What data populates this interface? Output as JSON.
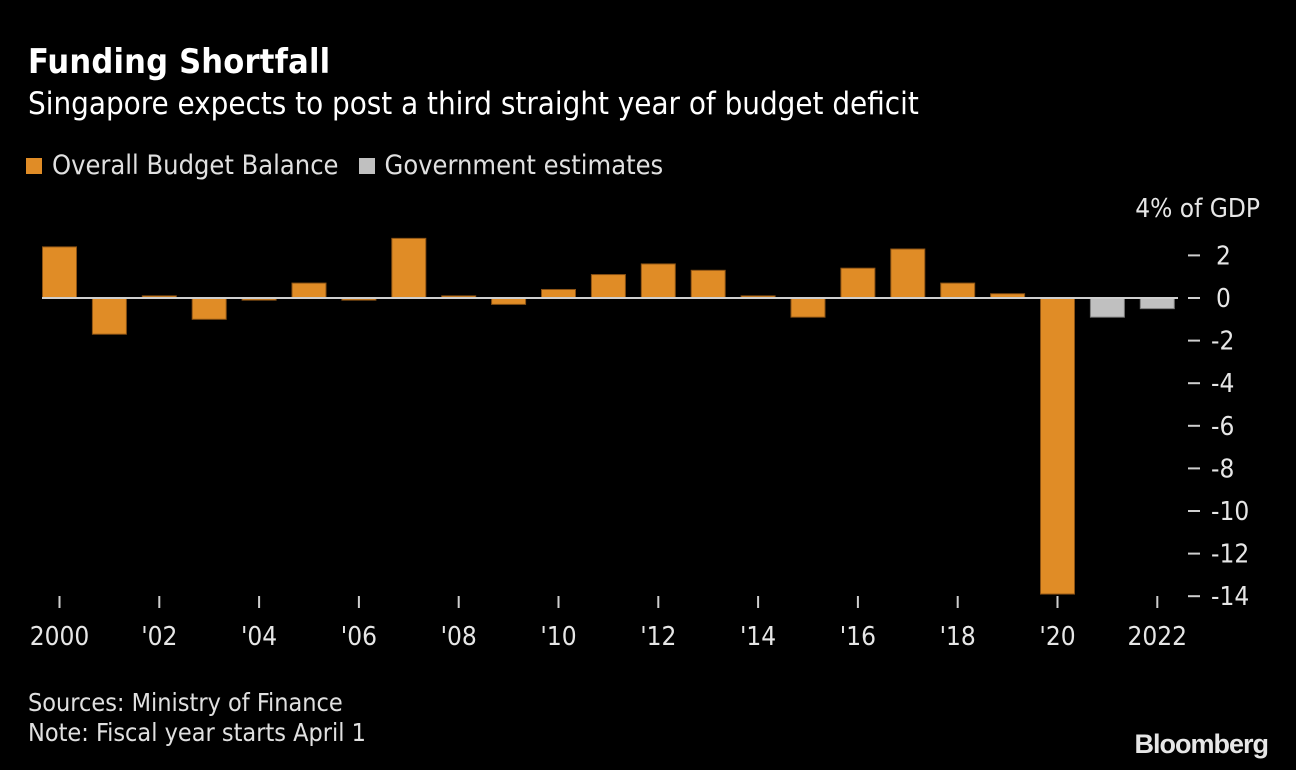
{
  "chart_data": {
    "type": "bar",
    "title": "Funding Shortfall",
    "subtitle": "Singapore expects to post a third straight year of budget deficit",
    "ylabel": "% of GDP",
    "unit_label": "4% of GDP",
    "xlabel": "",
    "ylim": [
      -14,
      4
    ],
    "yticks": [
      2,
      0,
      -2,
      -4,
      -6,
      -8,
      -10,
      -12,
      -14
    ],
    "ytick_labels": [
      "2",
      "0",
      "-2",
      "-4",
      "-6",
      "-8",
      "-10",
      "-12",
      "-14"
    ],
    "legend": [
      {
        "name": "Overall Budget Balance",
        "color": "#e08c26"
      },
      {
        "name": "Government estimates",
        "color": "#c0c0c0"
      }
    ],
    "legend_position": "top-left",
    "categories": [
      2000,
      2001,
      2002,
      2003,
      2004,
      2005,
      2006,
      2007,
      2008,
      2009,
      2010,
      2011,
      2012,
      2013,
      2014,
      2015,
      2016,
      2017,
      2018,
      2019,
      2020,
      2021,
      2022
    ],
    "xtick_years": [
      2000,
      2002,
      2004,
      2006,
      2008,
      2010,
      2012,
      2014,
      2016,
      2018,
      2020,
      2022
    ],
    "xtick_labels": [
      "2000",
      "'02",
      "'04",
      "'06",
      "'08",
      "'10",
      "'12",
      "'14",
      "'16",
      "'18",
      "'20",
      "2022"
    ],
    "series": [
      {
        "name": "Overall Budget Balance",
        "color": "#e08c26",
        "values": [
          2.4,
          -1.7,
          0.1,
          -1.0,
          -0.1,
          0.7,
          -0.1,
          2.8,
          0.1,
          -0.3,
          0.4,
          1.1,
          1.6,
          1.3,
          0.1,
          -0.9,
          1.4,
          2.3,
          0.7,
          0.2,
          -13.9,
          null,
          null
        ]
      },
      {
        "name": "Government estimates",
        "color": "#c0c0c0",
        "values": [
          null,
          null,
          null,
          null,
          null,
          null,
          null,
          null,
          null,
          null,
          null,
          null,
          null,
          null,
          null,
          null,
          null,
          null,
          null,
          null,
          null,
          -0.9,
          -0.5
        ]
      }
    ],
    "grid": false
  },
  "footer": {
    "sources": "Sources: Ministry of Finance",
    "note": "Note: Fiscal year starts April 1",
    "brand": "Bloomberg"
  }
}
